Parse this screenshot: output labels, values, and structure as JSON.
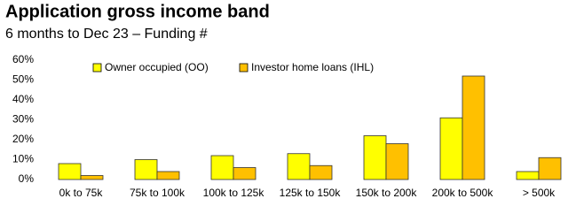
{
  "chart_data": {
    "type": "bar",
    "title": "Application gross income band",
    "subtitle": "6 months to Dec 23 – Funding #",
    "categories": [
      "0k to 75k",
      "75k to 100k",
      "100k to 125k",
      "125k to 150k",
      "150k to 200k",
      "200k to 500k",
      "> 500k"
    ],
    "series": [
      {
        "name": "Owner occupied (OO)",
        "color": "#ffff00",
        "values": [
          8,
          10,
          12,
          13,
          22,
          31,
          4
        ]
      },
      {
        "name": "Investor home loans (IHL)",
        "color": "#ffc000",
        "values": [
          2,
          4,
          6,
          7,
          18,
          52,
          11
        ]
      }
    ],
    "ylim": [
      0,
      60
    ],
    "yticks": [
      {
        "value": 0,
        "label": "0%"
      },
      {
        "value": 10,
        "label": "10%"
      },
      {
        "value": 20,
        "label": "20%"
      },
      {
        "value": 30,
        "label": "30%"
      },
      {
        "value": 40,
        "label": "40%"
      },
      {
        "value": 50,
        "label": "50%"
      },
      {
        "value": 60,
        "label": "60%"
      }
    ],
    "grid": false
  }
}
